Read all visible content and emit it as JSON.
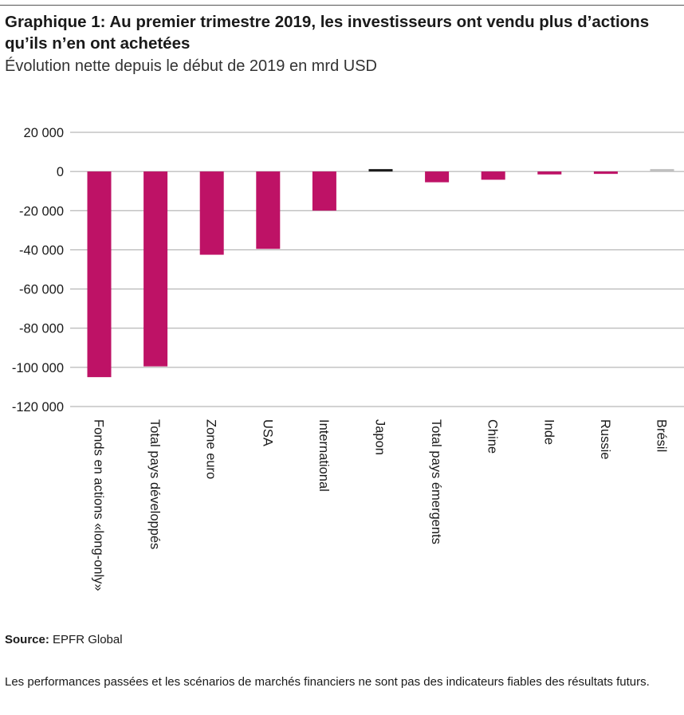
{
  "header": {
    "title": "Graphique 1: Au premier trimestre 2019, les investisseurs ont vendu plus d’actions qu’ils n’en ont achetées",
    "subtitle": "Évolution nette depuis le début de 2019 en mrd USD"
  },
  "chart_data": {
    "type": "bar",
    "categories": [
      "Fonds en actions «long-only»",
      "Total pays développés",
      "Zone euro",
      "USA",
      "International",
      "Japon",
      "Total pays émergents",
      "Chine",
      "Inde",
      "Russie",
      "Brésil"
    ],
    "values": [
      -105000,
      -99500,
      -42500,
      -39500,
      -20000,
      1200,
      -5500,
      -4200,
      -1500,
      -1000,
      300
    ],
    "bar_colors": [
      "#be1266",
      "#be1266",
      "#be1266",
      "#be1266",
      "#be1266",
      "#1a1a1a",
      "#be1266",
      "#be1266",
      "#be1266",
      "#be1266",
      "#bfbfbf"
    ],
    "yticks": [
      20000,
      0,
      -20000,
      -40000,
      -60000,
      -80000,
      -100000,
      -120000
    ],
    "ytick_labels": [
      "20 000",
      "0",
      "-20 000",
      "-40 000",
      "-60 000",
      "-80 000",
      "-100 000",
      "-120 000"
    ],
    "ylim": [
      -120000,
      20000
    ],
    "grid": true,
    "xlabel": "",
    "ylabel": ""
  },
  "footer": {
    "source_label": "Source:",
    "source_value": "EPFR Global",
    "disclaimer": "Les performances passées et les scénarios de marchés financiers ne sont pas des indicateurs fiables des résultats futurs."
  }
}
